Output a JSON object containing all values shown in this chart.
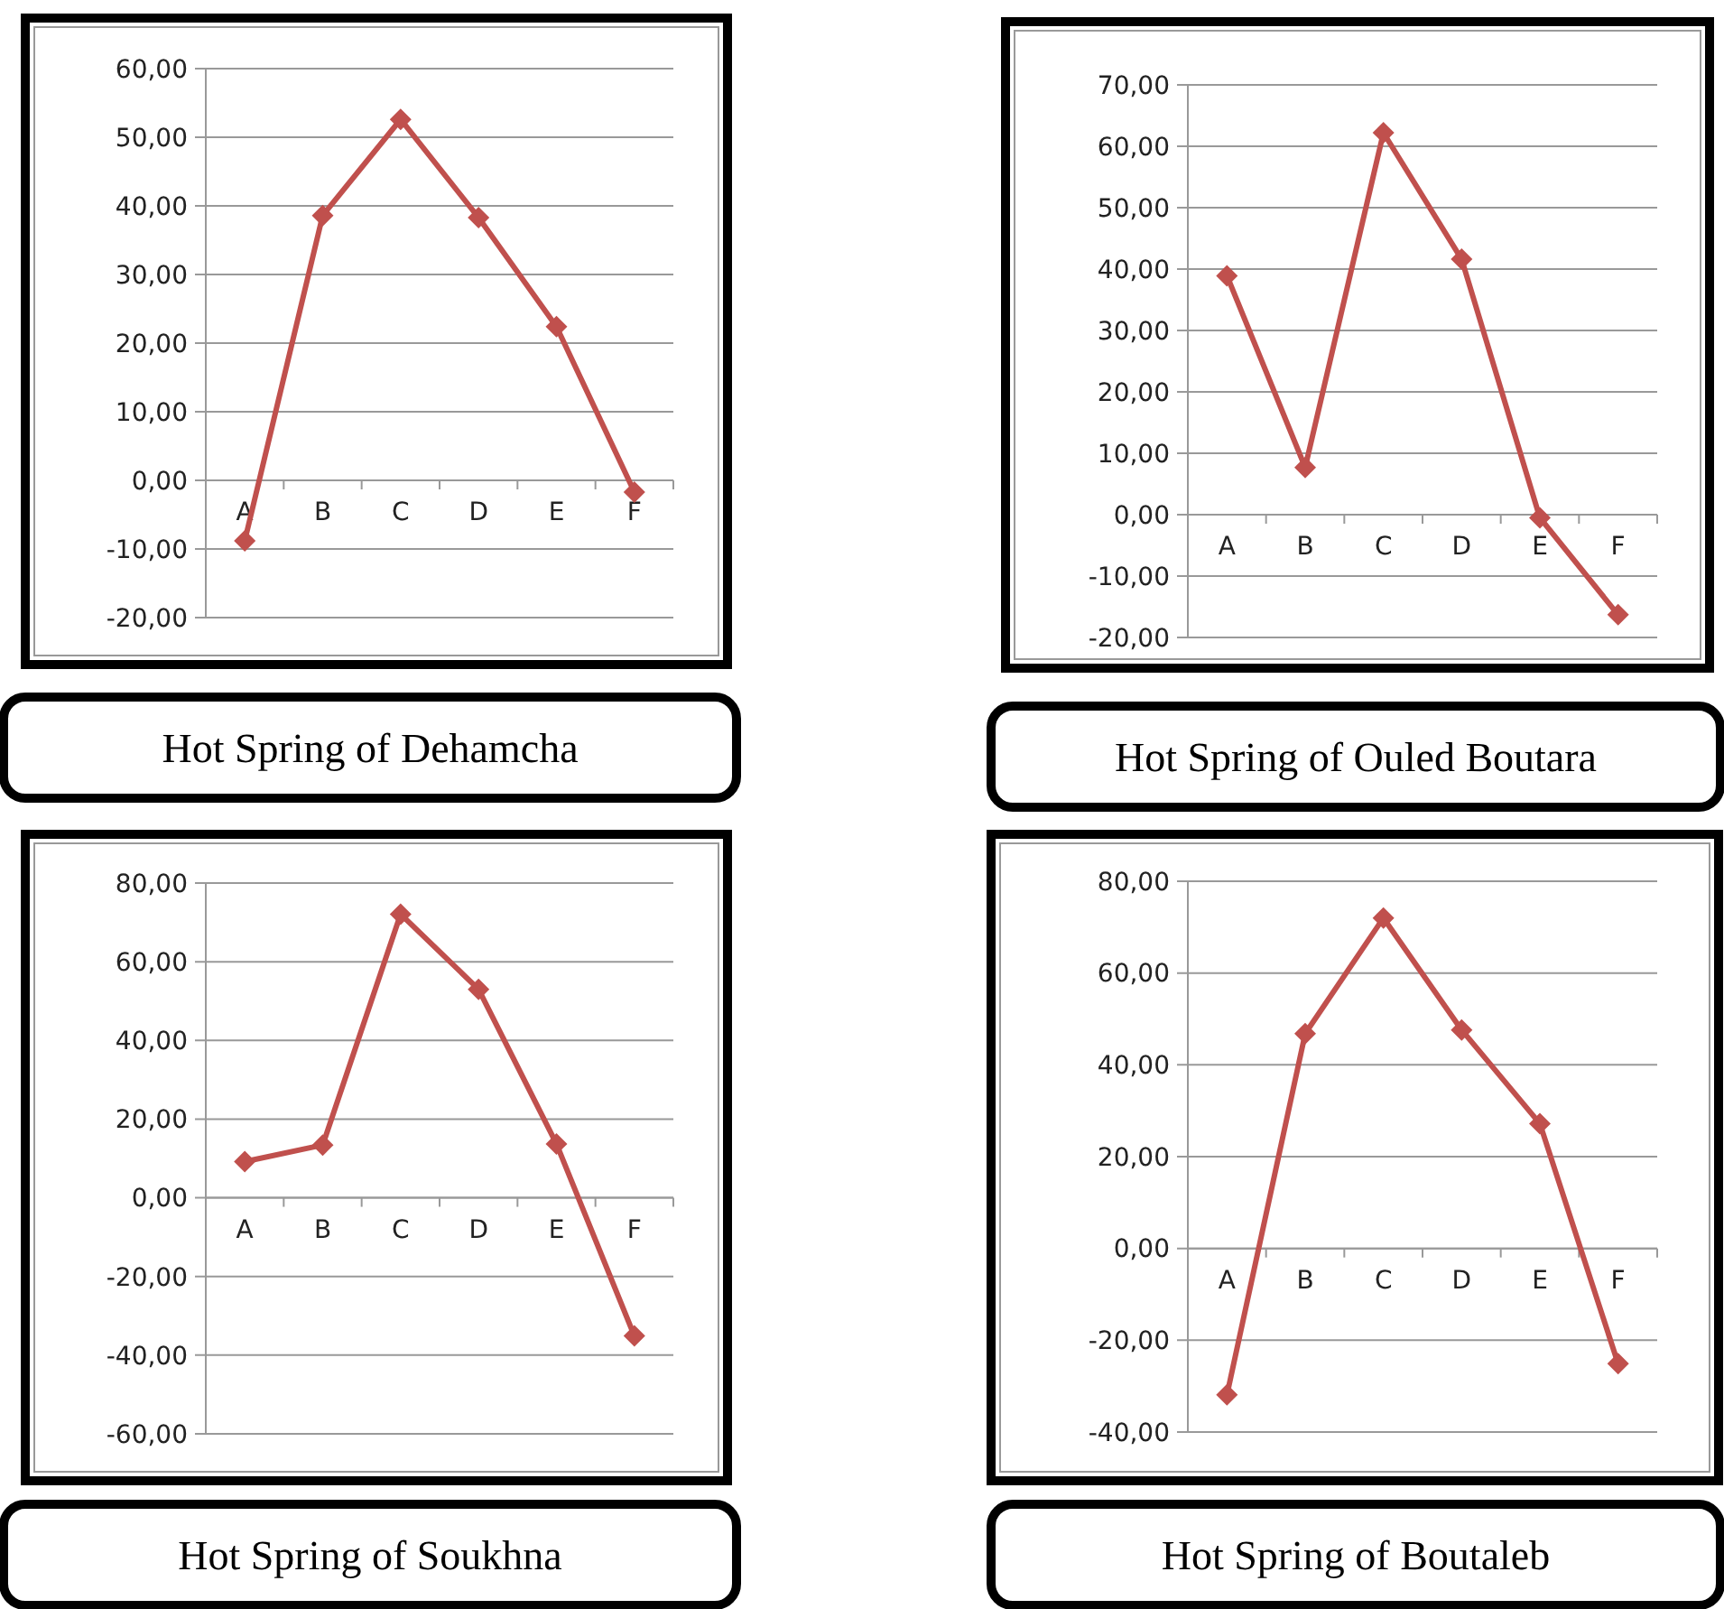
{
  "chart_data": [
    {
      "type": "line",
      "title": "Hot Spring of Dehamcha",
      "categories": [
        "A",
        "B",
        "C",
        "D",
        "E",
        "F"
      ],
      "series": [
        {
          "color": "#c0504d",
          "values": [
            -8.8,
            38.6,
            52.6,
            38.3,
            22.4,
            -1.7
          ]
        }
      ],
      "ylim": [
        -20,
        60
      ],
      "yticks": [
        {
          "value": -20,
          "label": "-20,00"
        },
        {
          "value": -10,
          "label": "-10,00"
        },
        {
          "value": 0,
          "label": "0,00"
        },
        {
          "value": 10,
          "label": "10,00"
        },
        {
          "value": 20,
          "label": "20,00"
        },
        {
          "value": 30,
          "label": "30,00"
        },
        {
          "value": 40,
          "label": "40,00"
        },
        {
          "value": 50,
          "label": "50,00"
        },
        {
          "value": 60,
          "label": "60,00"
        }
      ],
      "grid": "y",
      "marker": "diamond",
      "line_style": "solid"
    },
    {
      "type": "line",
      "title": "Hot Spring of Ouled Boutara",
      "categories": [
        "A",
        "B",
        "C",
        "D",
        "E",
        "F"
      ],
      "series": [
        {
          "color": "#c0504d",
          "values": [
            38.9,
            7.7,
            62.2,
            41.6,
            -0.5,
            -16.3
          ]
        }
      ],
      "ylim": [
        -20,
        70
      ],
      "yticks": [
        {
          "value": -20,
          "label": "-20,00"
        },
        {
          "value": -10,
          "label": "-10,00"
        },
        {
          "value": 0,
          "label": "0,00"
        },
        {
          "value": 10,
          "label": "10,00"
        },
        {
          "value": 20,
          "label": "20,00"
        },
        {
          "value": 30,
          "label": "30,00"
        },
        {
          "value": 40,
          "label": "40,00"
        },
        {
          "value": 50,
          "label": "50,00"
        },
        {
          "value": 60,
          "label": "60,00"
        },
        {
          "value": 70,
          "label": "70,00"
        }
      ],
      "grid": "y",
      "marker": "diamond",
      "line_style": "solid"
    },
    {
      "type": "line",
      "title": "Hot Spring of Soukhna",
      "categories": [
        "A",
        "B",
        "C",
        "D",
        "E",
        "F"
      ],
      "series": [
        {
          "color": "#c0504d",
          "values": [
            9.2,
            13.4,
            72.1,
            53.0,
            13.7,
            -35.1
          ]
        }
      ],
      "ylim": [
        -60,
        80
      ],
      "yticks": [
        {
          "value": -60,
          "label": "-60,00"
        },
        {
          "value": -40,
          "label": "-40,00"
        },
        {
          "value": -20,
          "label": "-20,00"
        },
        {
          "value": 0,
          "label": "0,00"
        },
        {
          "value": 20,
          "label": "20,00"
        },
        {
          "value": 40,
          "label": "40,00"
        },
        {
          "value": 60,
          "label": "60,00"
        },
        {
          "value": 80,
          "label": "80,00"
        }
      ],
      "grid": "y",
      "marker": "diamond",
      "line_style": "solid"
    },
    {
      "type": "line",
      "title": "Hot Spring of Boutaleb",
      "categories": [
        "A",
        "B",
        "C",
        "D",
        "E",
        "F"
      ],
      "series": [
        {
          "color": "#c0504d",
          "values": [
            -31.9,
            46.8,
            72.0,
            47.6,
            27.2,
            -25.1
          ]
        }
      ],
      "ylim": [
        -40,
        80
      ],
      "yticks": [
        {
          "value": -40,
          "label": "-40,00"
        },
        {
          "value": -20,
          "label": "-20,00"
        },
        {
          "value": 0,
          "label": "0,00"
        },
        {
          "value": 20,
          "label": "20,00"
        },
        {
          "value": 40,
          "label": "40,00"
        },
        {
          "value": 60,
          "label": "60,00"
        },
        {
          "value": 80,
          "label": "80,00"
        }
      ],
      "grid": "y",
      "marker": "diamond",
      "line_style": "solid"
    }
  ]
}
